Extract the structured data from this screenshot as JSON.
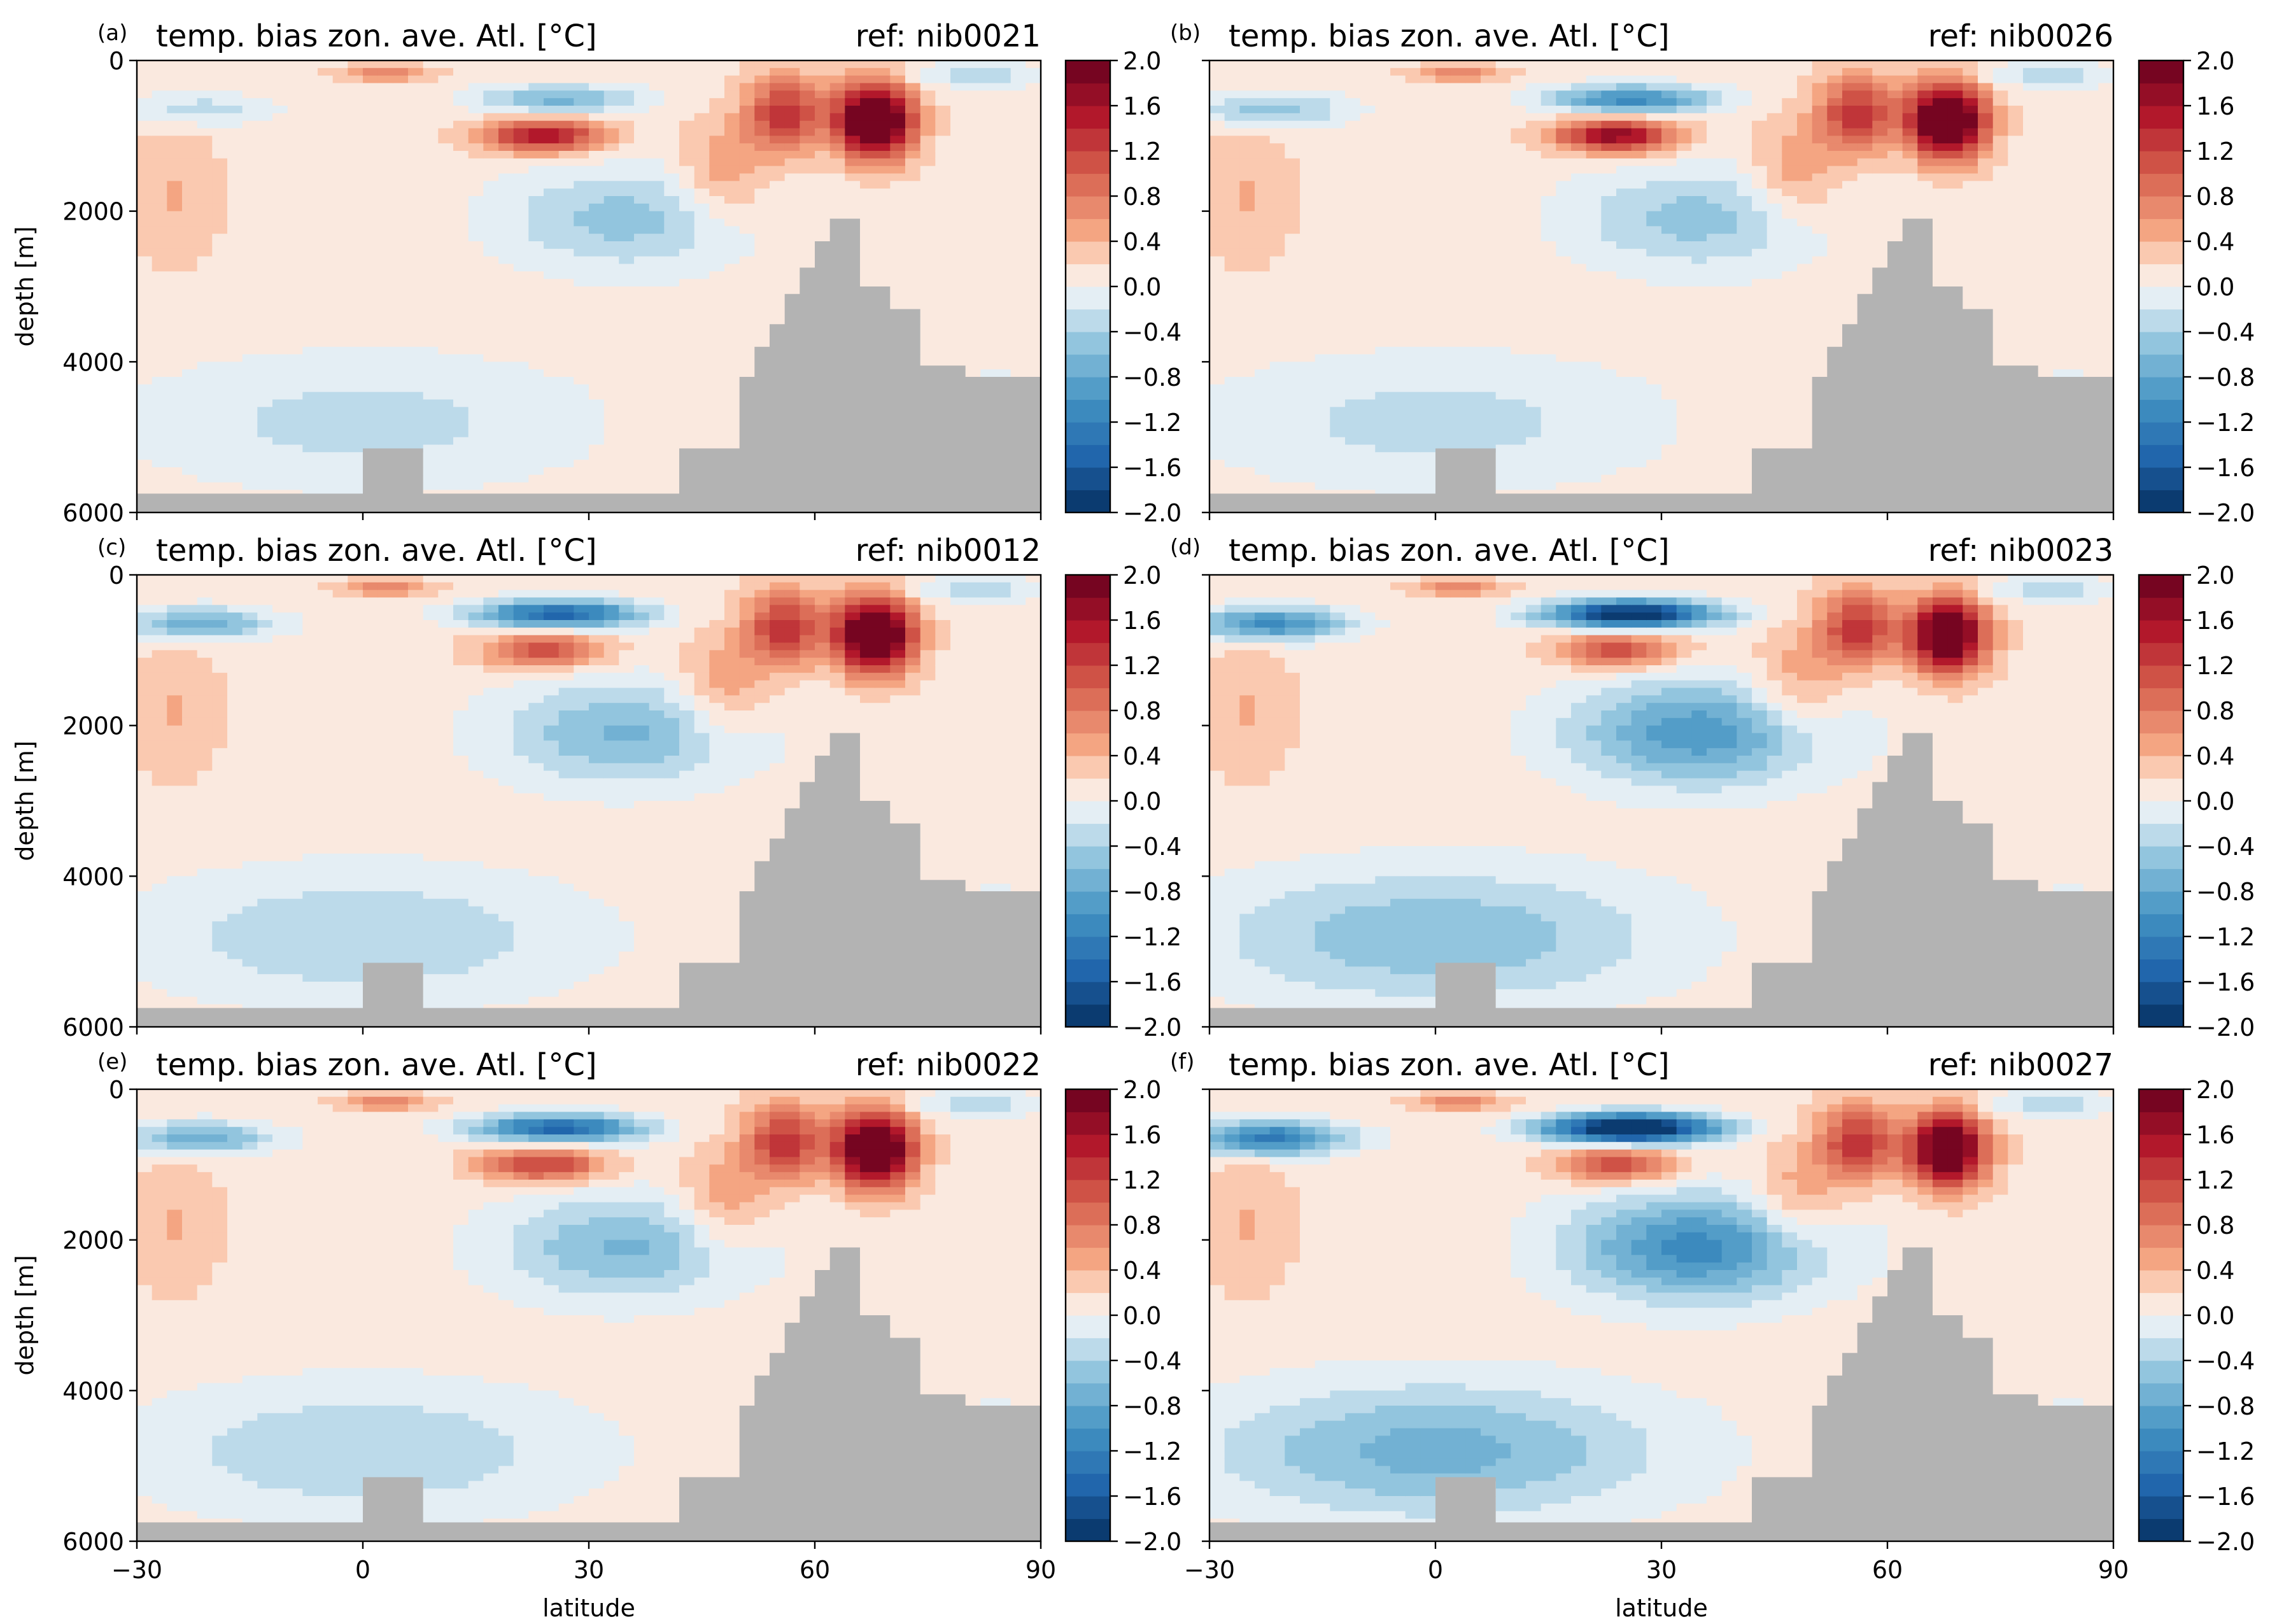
{
  "figure": {
    "colorbar_ticks": [
      "2.0",
      "1.6",
      "1.2",
      "0.8",
      "0.4",
      "0.0",
      "−0.4",
      "−0.8",
      "−1.2",
      "−1.6",
      "−2.0"
    ],
    "xticks": [
      "−30",
      "0",
      "30",
      "60",
      "90"
    ],
    "yticks": [
      "0",
      "2000",
      "4000",
      "6000"
    ],
    "xlabel": "latitude",
    "ylabel": "depth [m]"
  },
  "chart_data": [
    {
      "type": "heatmap",
      "panel_label": "(a)",
      "title": "temp. bias zon. ave. Atl. [°C]",
      "ref": "ref: nib0021",
      "xlim": [
        -30,
        90
      ],
      "ylim": [
        6000,
        0
      ],
      "clim": [
        -2.0,
        2.0
      ],
      "colormap": "RdBu_r",
      "levels": 20,
      "features": {
        "subsurface_cold": 0.8,
        "arctic_warm": 2.0,
        "deep_cold": 0.4,
        "upper_warm": 1.6
      }
    },
    {
      "type": "heatmap",
      "panel_label": "(b)",
      "title": "temp. bias zon. ave. Atl. [°C]",
      "ref": "ref: nib0026",
      "xlim": [
        -30,
        90
      ],
      "ylim": [
        6000,
        0
      ],
      "clim": [
        -2.0,
        2.0
      ],
      "colormap": "RdBu_r",
      "levels": 20,
      "features": {
        "subsurface_cold": 1.2,
        "arctic_warm": 2.0,
        "deep_cold": 0.4,
        "upper_warm": 1.8
      }
    },
    {
      "type": "heatmap",
      "panel_label": "(c)",
      "title": "temp. bias zon. ave. Atl. [°C]",
      "ref": "ref: nib0012",
      "xlim": [
        -30,
        90
      ],
      "ylim": [
        6000,
        0
      ],
      "clim": [
        -2.0,
        2.0
      ],
      "colormap": "RdBu_r",
      "levels": 20,
      "features": {
        "subsurface_cold": 1.6,
        "arctic_warm": 2.0,
        "deep_cold": 0.5,
        "upper_warm": 1.2
      }
    },
    {
      "type": "heatmap",
      "panel_label": "(d)",
      "title": "temp. bias zon. ave. Atl. [°C]",
      "ref": "ref: nib0023",
      "xlim": [
        -30,
        90
      ],
      "ylim": [
        6000,
        0
      ],
      "clim": [
        -2.0,
        2.0
      ],
      "colormap": "RdBu_r",
      "levels": 20,
      "features": {
        "subsurface_cold": 2.2,
        "arctic_warm": 1.8,
        "deep_cold": 0.7,
        "upper_warm": 1.2
      }
    },
    {
      "type": "heatmap",
      "panel_label": "(e)",
      "title": "temp. bias zon. ave. Atl. [°C]",
      "ref": "ref: nib0022",
      "xlim": [
        -30,
        90
      ],
      "ylim": [
        6000,
        0
      ],
      "clim": [
        -2.0,
        2.0
      ],
      "colormap": "RdBu_r",
      "levels": 20,
      "features": {
        "subsurface_cold": 1.6,
        "arctic_warm": 2.0,
        "deep_cold": 0.5,
        "upper_warm": 1.3
      }
    },
    {
      "type": "heatmap",
      "panel_label": "(f)",
      "title": "temp. bias zon. ave. Atl. [°C]",
      "ref": "ref: nib0027",
      "xlim": [
        -30,
        90
      ],
      "ylim": [
        6000,
        0
      ],
      "clim": [
        -2.0,
        2.0
      ],
      "colormap": "RdBu_r",
      "levels": 20,
      "features": {
        "subsurface_cold": 2.6,
        "arctic_warm": 1.8,
        "deep_cold": 0.8,
        "upper_warm": 1.2
      }
    }
  ],
  "colors": {
    "land": "#b3b3b3",
    "cmap_lo": "#053061",
    "cmap_mid": "#f7f7f7",
    "cmap_hi": "#67001f"
  }
}
